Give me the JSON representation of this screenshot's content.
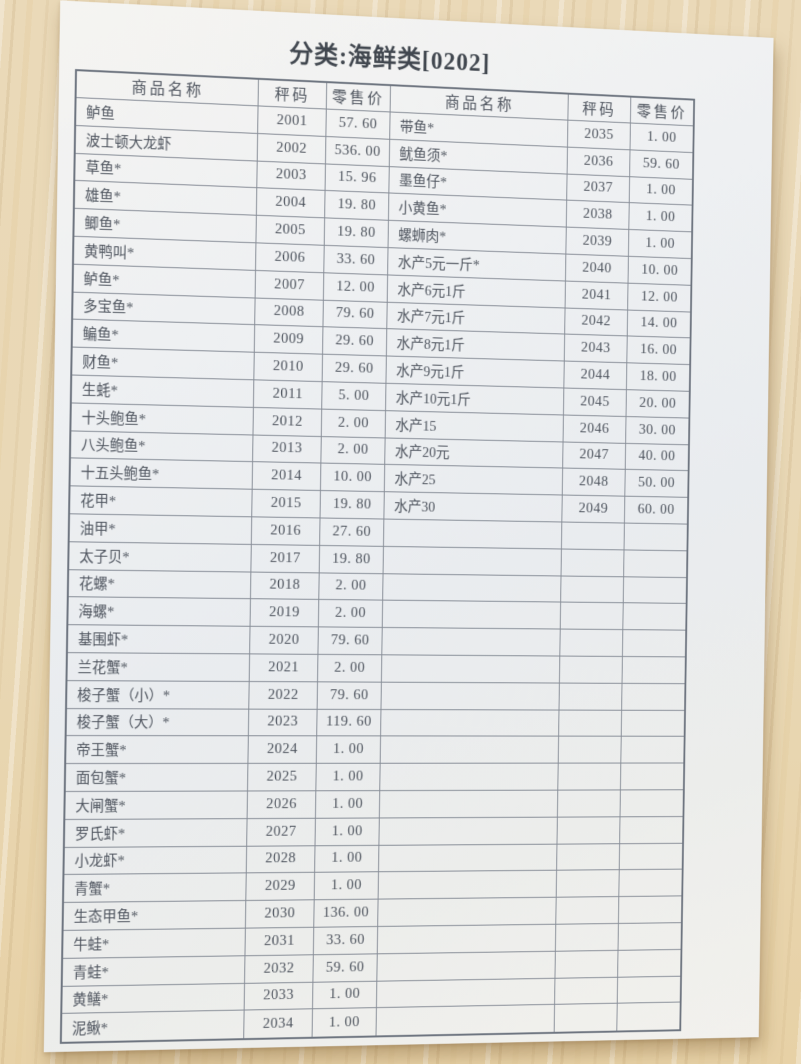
{
  "title": "分类:海鲜类[0202]",
  "colors": {
    "desk_wood": "#ead9b8",
    "paper": "#eef0f2",
    "table_line": "#878d97",
    "table_border": "#6e7580",
    "ink": "#4e545e",
    "title_ink": "#41474f"
  },
  "table": {
    "headers": [
      "商品名称",
      "秤码",
      "零售价",
      "商品名称",
      "秤码",
      "零售价"
    ],
    "rows": [
      [
        "鲈鱼",
        "2001",
        "57. 60",
        "带鱼*",
        "2035",
        "1. 00"
      ],
      [
        "波士顿大龙虾",
        "2002",
        "536. 00",
        "鱿鱼须*",
        "2036",
        "59. 60"
      ],
      [
        "草鱼*",
        "2003",
        "15. 96",
        "墨鱼仔*",
        "2037",
        "1. 00"
      ],
      [
        "雄鱼*",
        "2004",
        "19. 80",
        "小黄鱼*",
        "2038",
        "1. 00"
      ],
      [
        "鲫鱼*",
        "2005",
        "19. 80",
        "螺蛳肉*",
        "2039",
        "1. 00"
      ],
      [
        "黄鸭叫*",
        "2006",
        "33. 60",
        "水产5元一斤*",
        "2040",
        "10. 00"
      ],
      [
        "鲈鱼*",
        "2007",
        "12. 00",
        "水产6元1斤",
        "2041",
        "12. 00"
      ],
      [
        "多宝鱼*",
        "2008",
        "79. 60",
        "水产7元1斤",
        "2042",
        "14. 00"
      ],
      [
        "鳊鱼*",
        "2009",
        "29. 60",
        "水产8元1斤",
        "2043",
        "16. 00"
      ],
      [
        "财鱼*",
        "2010",
        "29. 60",
        "水产9元1斤",
        "2044",
        "18. 00"
      ],
      [
        "生蚝*",
        "2011",
        "5. 00",
        "水产10元1斤",
        "2045",
        "20. 00"
      ],
      [
        "十头鲍鱼*",
        "2012",
        "2. 00",
        "水产15",
        "2046",
        "30. 00"
      ],
      [
        "八头鲍鱼*",
        "2013",
        "2. 00",
        "水产20元",
        "2047",
        "40. 00"
      ],
      [
        "十五头鲍鱼*",
        "2014",
        "10. 00",
        "水产25",
        "2048",
        "50. 00"
      ],
      [
        "花甲*",
        "2015",
        "19. 80",
        "水产30",
        "2049",
        "60. 00"
      ],
      [
        "油甲*",
        "2016",
        "27. 60",
        "",
        "",
        ""
      ],
      [
        "太子贝*",
        "2017",
        "19. 80",
        "",
        "",
        ""
      ],
      [
        "花螺*",
        "2018",
        "2. 00",
        "",
        "",
        ""
      ],
      [
        "海螺*",
        "2019",
        "2. 00",
        "",
        "",
        ""
      ],
      [
        "基围虾*",
        "2020",
        "79. 60",
        "",
        "",
        ""
      ],
      [
        "兰花蟹*",
        "2021",
        "2. 00",
        "",
        "",
        ""
      ],
      [
        "梭子蟹（小）*",
        "2022",
        "79. 60",
        "",
        "",
        ""
      ],
      [
        "梭子蟹（大）*",
        "2023",
        "119. 60",
        "",
        "",
        ""
      ],
      [
        "帝王蟹*",
        "2024",
        "1. 00",
        "",
        "",
        ""
      ],
      [
        "面包蟹*",
        "2025",
        "1. 00",
        "",
        "",
        ""
      ],
      [
        "大闸蟹*",
        "2026",
        "1. 00",
        "",
        "",
        ""
      ],
      [
        "罗氏虾*",
        "2027",
        "1. 00",
        "",
        "",
        ""
      ],
      [
        "小龙虾*",
        "2028",
        "1. 00",
        "",
        "",
        ""
      ],
      [
        "青蟹*",
        "2029",
        "1. 00",
        "",
        "",
        ""
      ],
      [
        "生态甲鱼*",
        "2030",
        "136. 00",
        "",
        "",
        ""
      ],
      [
        "牛蛙*",
        "2031",
        "33. 60",
        "",
        "",
        ""
      ],
      [
        "青蛙*",
        "2032",
        "59. 60",
        "",
        "",
        ""
      ],
      [
        "黄鳝*",
        "2033",
        "1. 00",
        "",
        "",
        ""
      ],
      [
        "泥鳅*",
        "2034",
        "1. 00",
        "",
        "",
        ""
      ]
    ]
  }
}
